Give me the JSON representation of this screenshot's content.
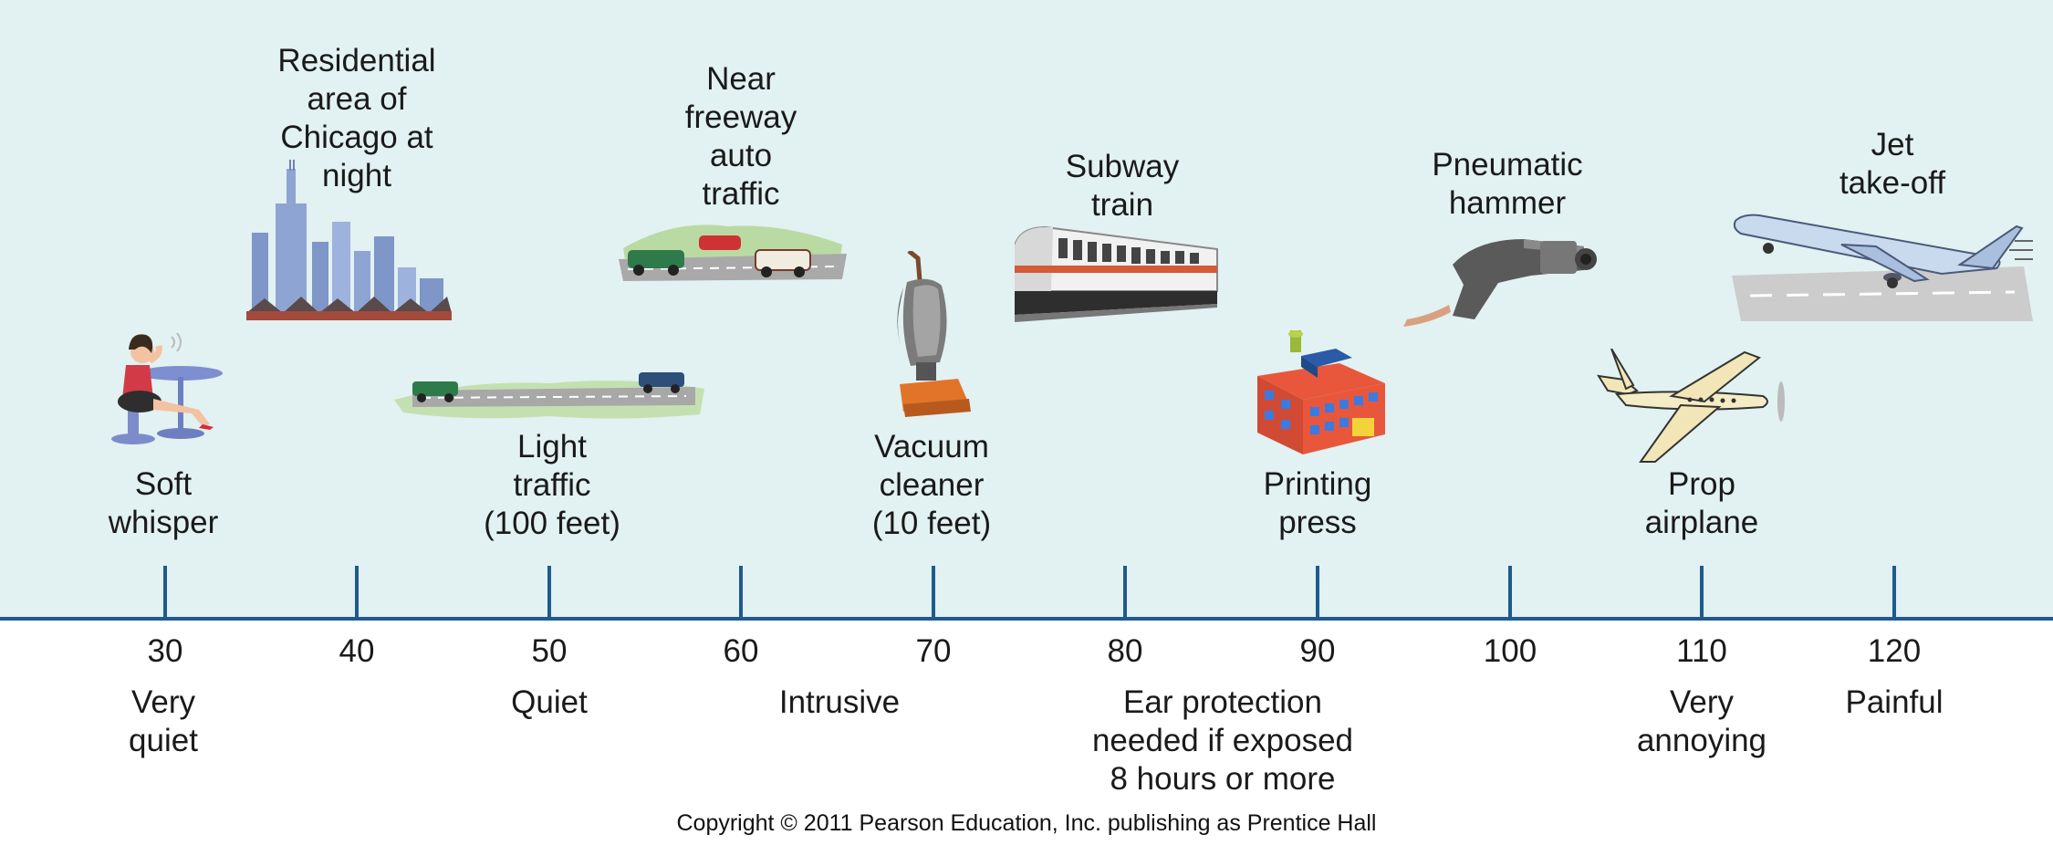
{
  "sources": [
    {
      "id": "soft-whisper",
      "label": "Soft\nwhisper"
    },
    {
      "id": "chicago-night",
      "label": "Residential\narea of\nChicago at\nnight"
    },
    {
      "id": "light-traffic",
      "label": "Light\ntraffic\n(100 feet)"
    },
    {
      "id": "freeway-traffic",
      "label": "Near\nfreeway\nauto\ntraffic"
    },
    {
      "id": "vacuum-cleaner",
      "label": "Vacuum\ncleaner\n(10 feet)"
    },
    {
      "id": "subway-train",
      "label": "Subway\ntrain"
    },
    {
      "id": "printing-press",
      "label": "Printing\npress"
    },
    {
      "id": "pneumatic-hammer",
      "label": "Pneumatic\nhammer"
    },
    {
      "id": "prop-airplane",
      "label": "Prop\nairplane"
    },
    {
      "id": "jet-takeoff",
      "label": "Jet\ntake-off"
    }
  ],
  "ticks": [
    "30",
    "40",
    "50",
    "60",
    "70",
    "80",
    "90",
    "100",
    "110",
    "120"
  ],
  "categories": [
    {
      "id": "very-quiet",
      "label": "Very\nquiet"
    },
    {
      "id": "quiet",
      "label": "Quiet"
    },
    {
      "id": "intrusive",
      "label": "Intrusive"
    },
    {
      "id": "ear-protection",
      "label": "Ear protection\nneeded if exposed\n8 hours or more"
    },
    {
      "id": "very-annoying",
      "label": "Very\nannoying"
    },
    {
      "id": "painful",
      "label": "Painful"
    }
  ],
  "colors": {
    "background": "#e2f1f1",
    "axis": "#1f5a8e"
  },
  "copyright": "Copyright © 2011 Pearson Education, Inc. publishing as Prentice Hall"
}
